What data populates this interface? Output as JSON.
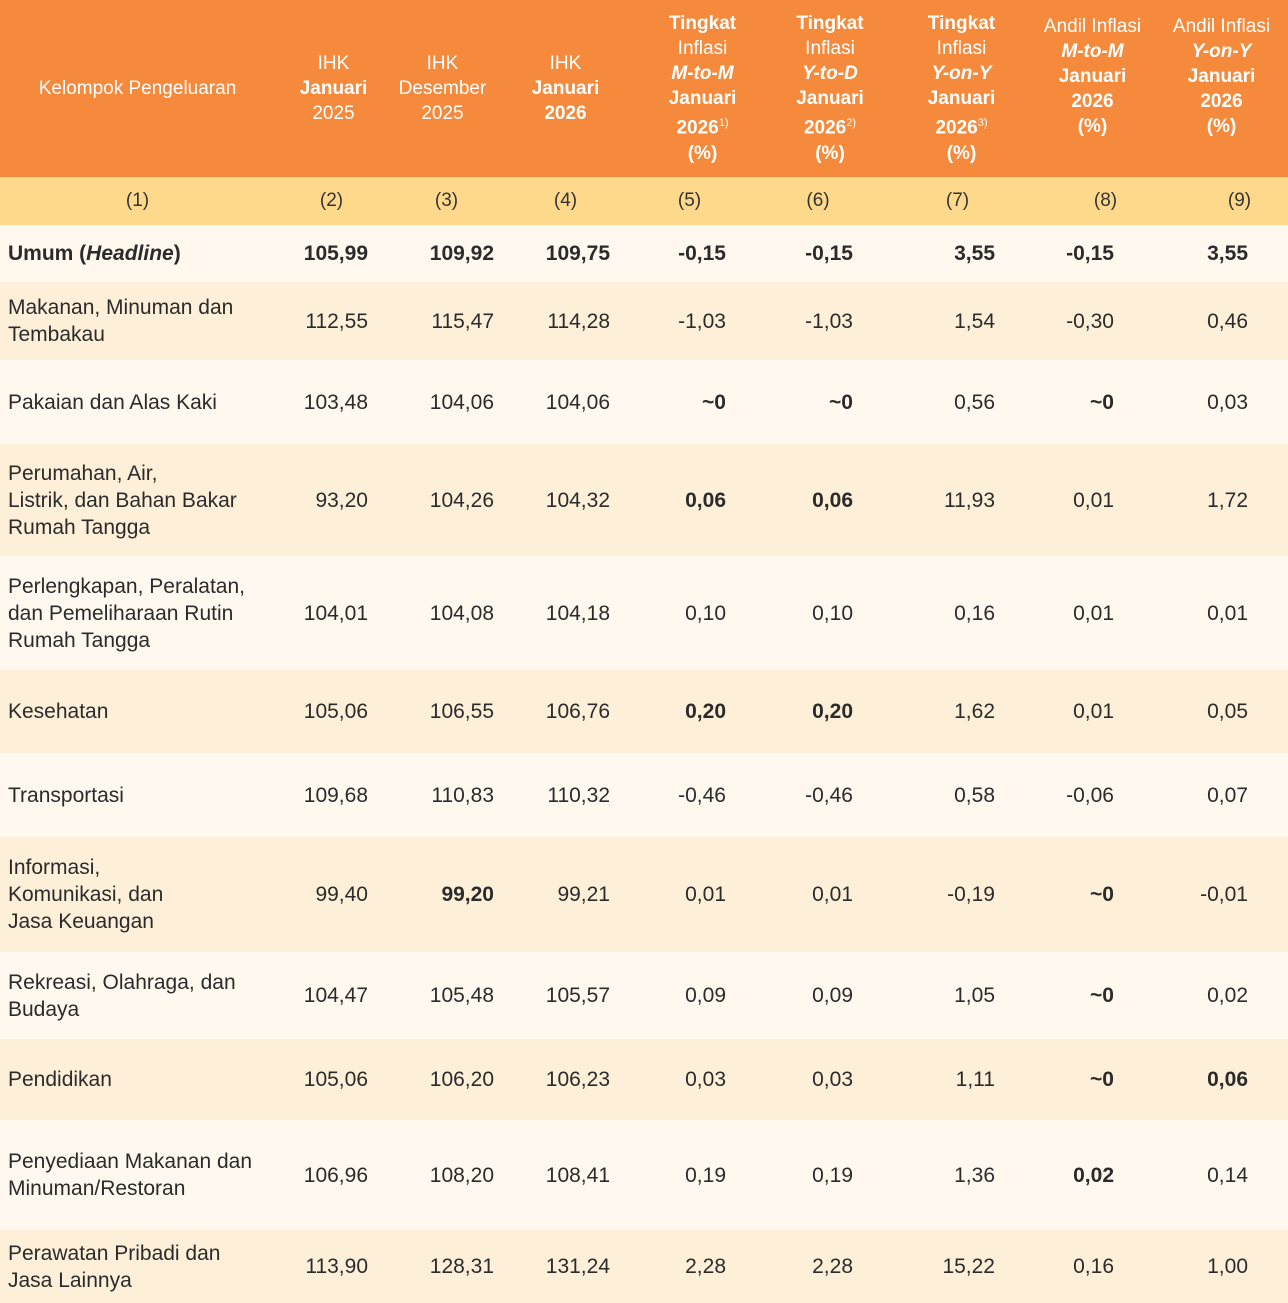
{
  "header": {
    "columns": [
      [
        "Kelompok Pengeluaran"
      ],
      [
        "IHK",
        "Januari",
        "2025"
      ],
      [
        "IHK",
        "Desember",
        "2025"
      ],
      [
        "IHK",
        "Januari",
        "2026"
      ],
      [
        "Tingkat",
        "Inflasi",
        "M-to-M",
        "Januari",
        "2026",
        "1)",
        "(%)"
      ],
      [
        "Tingkat",
        "Inflasi",
        "Y-to-D",
        "Januari",
        "2026",
        "2)",
        "(%)"
      ],
      [
        "Tingkat",
        "Inflasi",
        "Y-on-Y",
        "Januari",
        "2026",
        "3)",
        "(%)"
      ],
      [
        "Andil Inflasi",
        "M-to-M",
        "Januari",
        "2026",
        "(%)"
      ],
      [
        "Andil Inflasi",
        "Y-on-Y",
        "Januari",
        "2026",
        "(%)"
      ]
    ],
    "numbers": [
      "(1)",
      "(2)",
      "(3)",
      "(4)",
      "(5)",
      "(6)",
      "(7)",
      "(8)",
      "(9)"
    ]
  },
  "table": {
    "rows": [
      {
        "label": [
          "Umum (",
          "Headline",
          ")"
        ],
        "cells": [
          "105,99",
          "109,92",
          "109,75",
          "-0,15",
          "-0,15",
          "3,55",
          "-0,15",
          "3,55"
        ]
      },
      {
        "label": [
          "Makanan, Minuman dan",
          "Tembakau"
        ],
        "cells": [
          "112,55",
          "115,47",
          "114,28",
          "-1,03",
          "-1,03",
          "1,54",
          "-0,30",
          "0,46"
        ]
      },
      {
        "label": [
          "Pakaian dan Alas Kaki"
        ],
        "cells": [
          "103,48",
          "104,06",
          "104,06",
          "~0",
          "~0",
          "0,56",
          "~0",
          "0,03"
        ]
      },
      {
        "label": [
          "Perumahan, Air,",
          "Listrik, dan Bahan Bakar",
          "Rumah Tangga"
        ],
        "cells": [
          "93,20",
          "104,26",
          "104,32",
          "0,06",
          "0,06",
          "11,93",
          "0,01",
          "1,72"
        ]
      },
      {
        "label": [
          "Perlengkapan, Peralatan,",
          "dan Pemeliharaan Rutin",
          "Rumah Tangga"
        ],
        "cells": [
          "104,01",
          "104,08",
          "104,18",
          "0,10",
          "0,10",
          "0,16",
          "0,01",
          "0,01"
        ]
      },
      {
        "label": [
          "Kesehatan"
        ],
        "cells": [
          "105,06",
          "106,55",
          "106,76",
          "0,20",
          "0,20",
          "1,62",
          "0,01",
          "0,05"
        ]
      },
      {
        "label": [
          "Transportasi"
        ],
        "cells": [
          "109,68",
          "110,83",
          "110,32",
          "-0,46",
          "-0,46",
          "0,58",
          "-0,06",
          "0,07"
        ]
      },
      {
        "label": [
          "Informasi,",
          "Komunikasi, dan",
          "Jasa Keuangan"
        ],
        "cells": [
          "99,40",
          "99,20",
          "99,21",
          "0,01",
          "0,01",
          "-0,19",
          "~0",
          "-0,01"
        ]
      },
      {
        "label": [
          "Rekreasi, Olahraga, dan",
          "Budaya"
        ],
        "cells": [
          "104,47",
          "105,48",
          "105,57",
          "0,09",
          "0,09",
          "1,05",
          "~0",
          "0,02"
        ]
      },
      {
        "label": [
          "Pendidikan"
        ],
        "cells": [
          "105,06",
          "106,20",
          "106,23",
          "0,03",
          "0,03",
          "1,11",
          "~0",
          "0,06"
        ]
      },
      {
        "label": [
          "Penyediaan Makanan dan",
          "Minuman/Restoran"
        ],
        "cells": [
          "106,96",
          "108,20",
          "108,41",
          "0,19",
          "0,19",
          "1,36",
          "0,02",
          "0,14"
        ]
      },
      {
        "label": [
          "Perawatan Pribadi dan",
          "Jasa Lainnya"
        ],
        "cells": [
          "113,90",
          "128,31",
          "131,24",
          "2,28",
          "2,28",
          "15,22",
          "0,16",
          "1,00"
        ]
      }
    ]
  }
}
